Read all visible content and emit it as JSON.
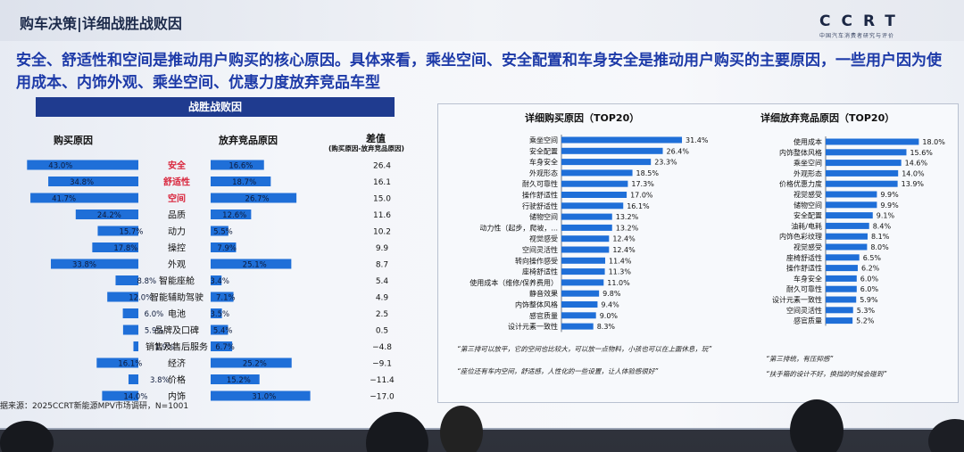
{
  "title": "购车决策|详细战胜战败因",
  "logo": {
    "text": "CCRT",
    "subtitle": "中国汽车消费者研究与评价"
  },
  "headline": "安全、舒适性和空间是推动用户购买的核心原因。具体来看，乘坐空间、安全配置和车身安全是推动用户购买的主要原因，一些用户因为使用成本、内饰外观、乘坐空间、优惠力度放弃竞品车型",
  "left_panel": {
    "banner": "战胜战败因",
    "col_buy": "购买原因",
    "col_abandon": "放弃竞品原因",
    "col_diff": "差值",
    "col_diff_sub": "(购买原因-放弃竞品原因)"
  },
  "right_panel": {
    "quotes_left": [
      "“第三排可以放平，它的空间也比较大，可以放一点物料，小孩也可以在上面休息，玩”",
      "“座位还有车内空间，舒适感，人性化的一些设置，让人体验感很好”"
    ],
    "quotes_right": [
      "“第三排统，有压抑感”",
      "“扶手箱的设计不好，换挡的时候会碰到”"
    ]
  },
  "source": "据来源：2025CCRT新能源MPV市场调研，N=1001",
  "colors": {
    "bar": "#1f6fd8",
    "highlight": "#d9263d",
    "navy": "#1f3b8f"
  },
  "chart_data": [
    {
      "type": "bar",
      "title": "战胜战败因",
      "categories": [
        "安全",
        "舒适性",
        "空间",
        "品质",
        "动力",
        "操控",
        "外观",
        "智能座舱",
        "智能辅助驾驶",
        "电池",
        "品牌及口碑",
        "销售及售后服务",
        "经济",
        "价格",
        "内饰"
      ],
      "highlight_categories": [
        "安全",
        "舒适性",
        "空间"
      ],
      "series": [
        {
          "name": "购买原因",
          "values": [
            43.0,
            34.8,
            41.7,
            24.2,
            15.7,
            17.8,
            33.8,
            8.8,
            12.0,
            6.0,
            5.9,
            1.9,
            16.1,
            3.8,
            14.0
          ]
        },
        {
          "name": "放弃竞品原因",
          "values": [
            16.6,
            18.7,
            26.7,
            12.6,
            5.5,
            7.9,
            25.1,
            3.4,
            7.1,
            3.5,
            5.4,
            6.7,
            25.2,
            15.2,
            31.0
          ]
        },
        {
          "name": "差值",
          "values": [
            26.4,
            16.1,
            15.0,
            11.6,
            10.2,
            9.9,
            8.7,
            5.4,
            4.9,
            2.5,
            0.5,
            -4.8,
            -9.1,
            -11.4,
            -17.0
          ]
        }
      ]
    },
    {
      "type": "bar",
      "title": "详细购买原因（TOP20）",
      "categories": [
        "乘坐空间",
        "安全配置",
        "车身安全",
        "外观形态",
        "耐久可靠性",
        "操作舒适性",
        "行驶舒适性",
        "储物空间",
        "动力性（起步，爬坡，...",
        "视觉感受",
        "空间灵活性",
        "转向操作感受",
        "座椅舒适性",
        "使用成本（维修/保养费用）",
        "静音效果",
        "内饰整体风格",
        "感官质量",
        "设计元素一致性"
      ],
      "values": [
        31.4,
        26.4,
        23.3,
        18.5,
        17.3,
        17.0,
        16.1,
        13.2,
        13.2,
        12.4,
        12.4,
        11.4,
        11.3,
        11.0,
        9.8,
        9.4,
        9.0,
        8.3
      ]
    },
    {
      "type": "bar",
      "title": "详细放弃竞品原因（TOP20）",
      "categories": [
        "使用成本",
        "内饰整体风格",
        "乘坐空间",
        "外观形态",
        "价格优惠力度",
        "视觉感受",
        "储物空间",
        "安全配置",
        "油耗/电耗",
        "内饰色彩纹理",
        "视觉感受",
        "座椅舒适性",
        "操作舒适性",
        "车身安全",
        "耐久可靠性",
        "设计元素一致性",
        "空间灵活性",
        "感官质量"
      ],
      "values": [
        18.0,
        15.6,
        14.6,
        14.0,
        13.9,
        9.9,
        9.9,
        9.1,
        8.4,
        8.1,
        8.0,
        6.5,
        6.2,
        6.0,
        6.0,
        5.9,
        5.3,
        5.2
      ]
    }
  ]
}
